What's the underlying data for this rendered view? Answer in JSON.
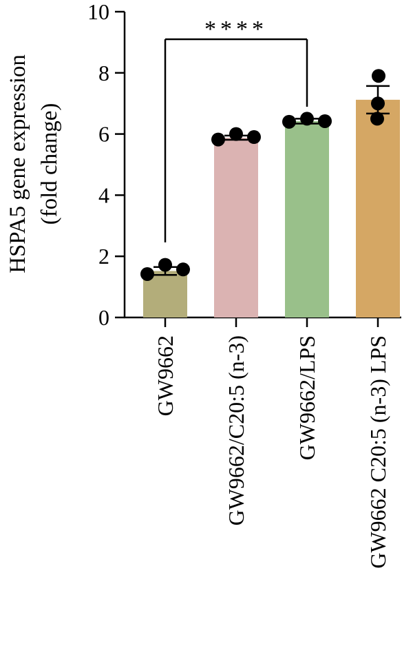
{
  "chart_data": {
    "type": "bar",
    "categories": [
      "GW9662",
      "GW9662/C20:5 (n-3)",
      "GW9662/LPS",
      "GW9662 C20:5 (n-3) LPS"
    ],
    "values": [
      1.52,
      5.88,
      6.42,
      7.12
    ],
    "errors": [
      0.13,
      0.07,
      0.08,
      0.45
    ],
    "points": [
      [
        1.42,
        1.72,
        1.57
      ],
      [
        5.82,
        6.0,
        5.9
      ],
      [
        6.4,
        6.5,
        6.42
      ],
      [
        7.9,
        7.0,
        6.5
      ]
    ],
    "colors": [
      "#b3ad7a",
      "#dbb3b2",
      "#99c08a",
      "#d5a764"
    ],
    "ylabel_line1": "HSPA5 gene expression",
    "ylabel_line2": "(fold change)",
    "ylim": [
      0,
      10
    ],
    "yticks": [
      "0",
      "2",
      "4",
      "6",
      "8",
      "10"
    ],
    "significance": {
      "label": "****",
      "from_category": 0,
      "to_category": 2
    }
  }
}
